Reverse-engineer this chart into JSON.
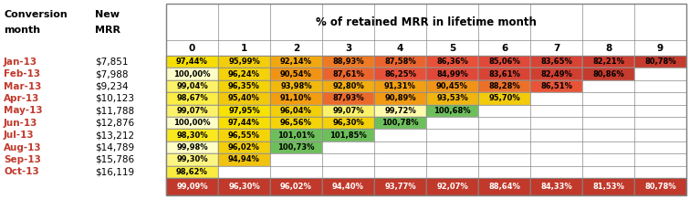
{
  "title": "% of retained MRR in lifetime month",
  "lifetime_cols": [
    0,
    1,
    2,
    3,
    4,
    5,
    6,
    7,
    8,
    9
  ],
  "rows": [
    {
      "month": "Jan-13",
      "mrr": "$7,851",
      "values": [
        97.44,
        95.99,
        92.14,
        88.93,
        87.58,
        86.36,
        85.06,
        83.65,
        82.21,
        80.78
      ]
    },
    {
      "month": "Feb-13",
      "mrr": "$7,988",
      "values": [
        100.0,
        96.24,
        90.54,
        87.61,
        86.25,
        84.99,
        83.61,
        82.49,
        80.86,
        null
      ]
    },
    {
      "month": "Mar-13",
      "mrr": "$9,234",
      "values": [
        99.04,
        96.35,
        93.98,
        92.8,
        91.31,
        90.45,
        88.28,
        86.51,
        null,
        null
      ]
    },
    {
      "month": "Apr-13",
      "mrr": "$10,123",
      "values": [
        98.67,
        95.4,
        91.1,
        87.93,
        90.89,
        93.53,
        95.7,
        null,
        null,
        null
      ]
    },
    {
      "month": "May-13",
      "mrr": "$11,788",
      "values": [
        99.07,
        97.95,
        96.04,
        99.07,
        99.72,
        100.68,
        null,
        null,
        null,
        null
      ]
    },
    {
      "month": "Jun-13",
      "mrr": "$12,876",
      "values": [
        100.0,
        97.44,
        96.56,
        96.3,
        100.78,
        null,
        null,
        null,
        null,
        null
      ]
    },
    {
      "month": "Jul-13",
      "mrr": "$13,212",
      "values": [
        98.3,
        96.55,
        101.01,
        101.85,
        null,
        null,
        null,
        null,
        null,
        null
      ]
    },
    {
      "month": "Aug-13",
      "mrr": "$14,789",
      "values": [
        99.98,
        96.02,
        100.73,
        null,
        null,
        null,
        null,
        null,
        null,
        null
      ]
    },
    {
      "month": "Sep-13",
      "mrr": "$15,786",
      "values": [
        99.3,
        94.94,
        null,
        null,
        null,
        null,
        null,
        null,
        null,
        null
      ]
    },
    {
      "month": "Oct-13",
      "mrr": "$16,119",
      "values": [
        98.62,
        null,
        null,
        null,
        null,
        null,
        null,
        null,
        null,
        null
      ]
    }
  ],
  "totals": [
    99.09,
    96.3,
    96.02,
    94.4,
    93.77,
    92.07,
    88.64,
    84.33,
    81.53,
    80.78
  ],
  "total_row_bg": "#c0392b",
  "total_text_color": "#ffffff",
  "month_text_color": "#c0392b",
  "font_size": 7.5,
  "header_font_size": 8.5,
  "cell_font_size": 6.0
}
